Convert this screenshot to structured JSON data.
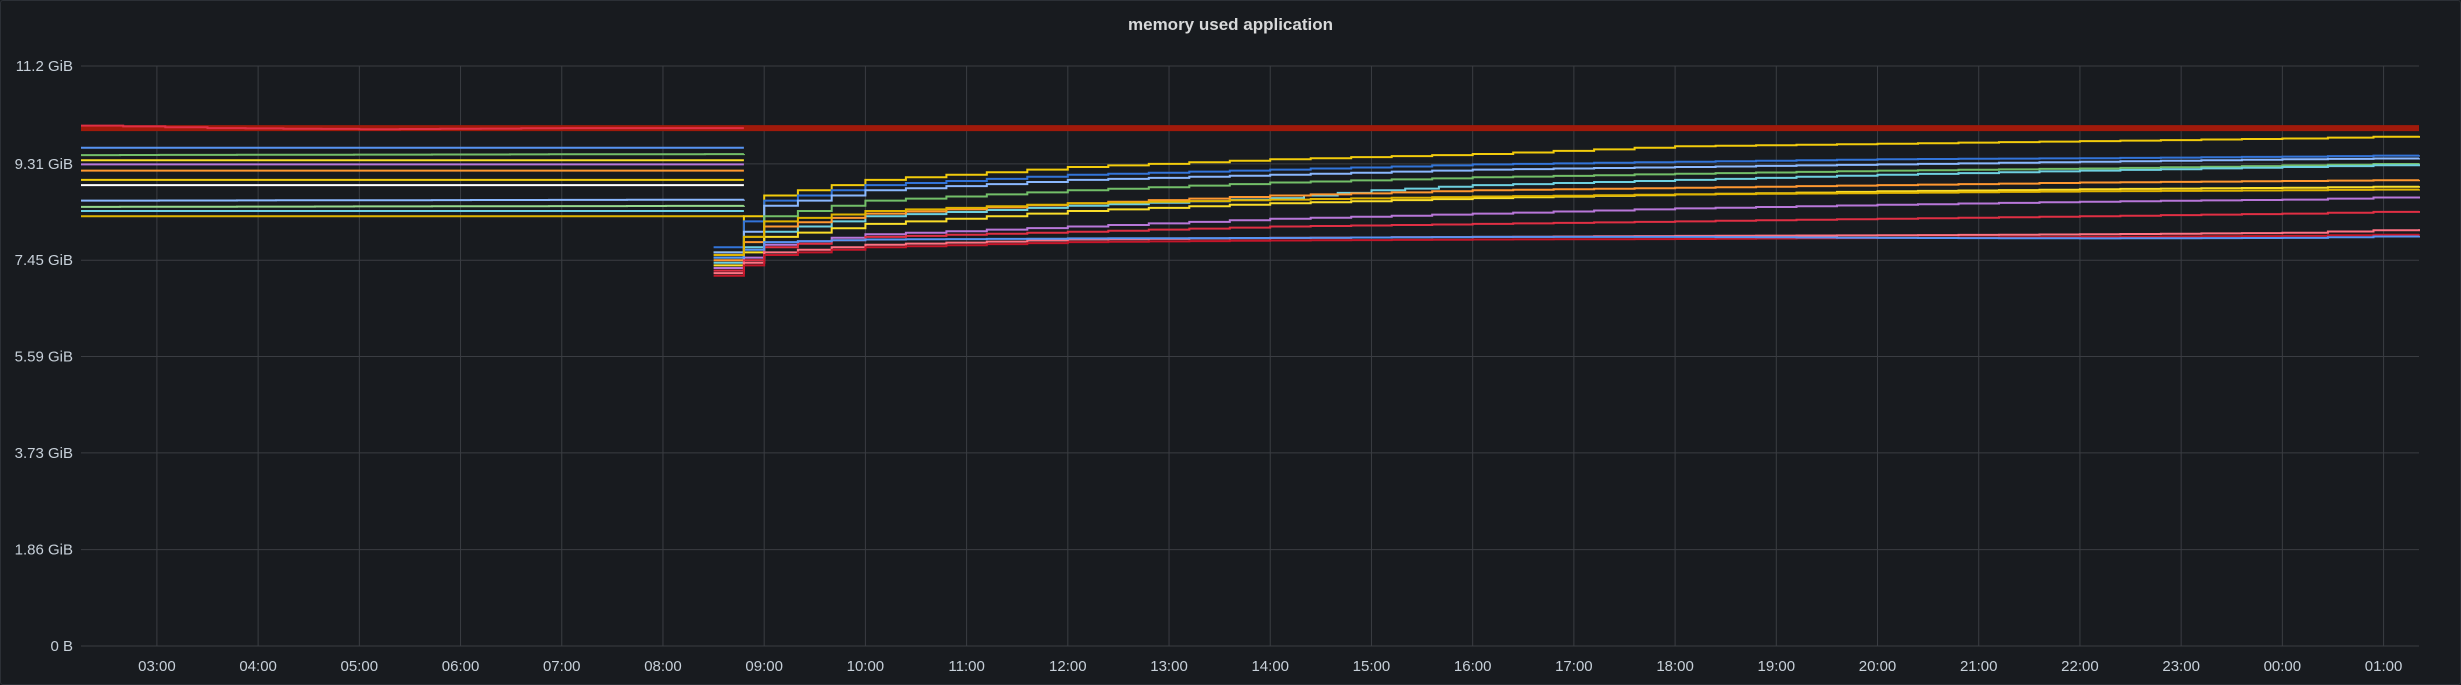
{
  "panel": {
    "title": "memory used application"
  },
  "colors": {
    "background": "#181b1f",
    "grid": "#3a3d42",
    "text": "#c7d0d9",
    "highlight_series": "#a01a0b"
  },
  "chart_data": {
    "type": "line",
    "title": "memory used application",
    "xlabel": "",
    "ylabel": "",
    "x_ticks": [
      "03:00",
      "04:00",
      "05:00",
      "06:00",
      "07:00",
      "08:00",
      "09:00",
      "10:00",
      "11:00",
      "12:00",
      "13:00",
      "14:00",
      "15:00",
      "16:00",
      "17:00",
      "18:00",
      "19:00",
      "20:00",
      "21:00",
      "22:00",
      "23:00",
      "00:00",
      "01:00"
    ],
    "x_range_hours": [
      2.25,
      25.35
    ],
    "y_ticks": [
      {
        "value": 0,
        "label": "0 B"
      },
      {
        "value": 1.86,
        "label": "1.86 GiB"
      },
      {
        "value": 3.73,
        "label": "3.73 GiB"
      },
      {
        "value": 5.59,
        "label": "5.59 GiB"
      },
      {
        "value": 7.45,
        "label": "7.45 GiB"
      },
      {
        "value": 9.31,
        "label": "9.31 GiB"
      },
      {
        "value": 11.2,
        "label": "11.2 GiB"
      }
    ],
    "y_unit": "GiB",
    "ylim": [
      0,
      11.2
    ],
    "grid": true,
    "legend": "none",
    "restart_at_hour": 8.6,
    "series": [
      {
        "color": "#a01a0b",
        "width": 6,
        "points": [
          [
            2.25,
            10.0
          ],
          [
            25.35,
            10.0
          ]
        ]
      },
      {
        "color": "#e02f44",
        "width": 2,
        "points": [
          [
            2.25,
            10.05
          ],
          [
            3.5,
            10.0
          ],
          [
            5.0,
            9.98
          ],
          [
            7.0,
            10.0
          ],
          [
            8.8,
            10.0
          ]
        ]
      },
      {
        "color": "#5794f2",
        "width": 2,
        "points": [
          [
            2.25,
            9.62
          ],
          [
            8.8,
            9.62
          ]
        ]
      },
      {
        "color": "#73bf69",
        "width": 2,
        "points": [
          [
            2.25,
            9.48
          ],
          [
            8.8,
            9.5
          ]
        ]
      },
      {
        "color": "#fade2a",
        "width": 2,
        "points": [
          [
            2.25,
            9.38
          ],
          [
            8.8,
            9.38
          ]
        ]
      },
      {
        "color": "#b877d9",
        "width": 2,
        "points": [
          [
            2.25,
            9.3
          ],
          [
            8.8,
            9.3
          ]
        ]
      },
      {
        "color": "#ff9830",
        "width": 2,
        "points": [
          [
            2.25,
            9.18
          ],
          [
            8.8,
            9.18
          ]
        ]
      },
      {
        "color": "#f2cc0c",
        "width": 2,
        "points": [
          [
            2.25,
            9.0
          ],
          [
            8.8,
            9.0
          ]
        ]
      },
      {
        "color": "#ffffff",
        "width": 2,
        "points": [
          [
            2.25,
            8.9
          ],
          [
            8.8,
            8.9
          ]
        ]
      },
      {
        "color": "#8ab8ff",
        "width": 2,
        "points": [
          [
            2.25,
            8.6
          ],
          [
            8.8,
            8.62
          ]
        ]
      },
      {
        "color": "#96d98d",
        "width": 2,
        "points": [
          [
            2.25,
            8.48
          ],
          [
            8.8,
            8.5
          ]
        ]
      },
      {
        "color": "#6ed0e0",
        "width": 2,
        "points": [
          [
            2.25,
            8.4
          ],
          [
            8.8,
            8.4
          ]
        ]
      },
      {
        "color": "#e0b400",
        "width": 2,
        "points": [
          [
            2.25,
            8.3
          ],
          [
            8.8,
            8.3
          ]
        ]
      },
      {
        "color": "#f2cc0c",
        "width": 2,
        "points": [
          [
            8.5,
            7.6
          ],
          [
            8.7,
            7.6
          ],
          [
            8.8,
            8.3
          ],
          [
            9.0,
            8.7
          ],
          [
            10.0,
            9.0
          ],
          [
            12.0,
            9.25
          ],
          [
            14.0,
            9.4
          ],
          [
            16.0,
            9.5
          ],
          [
            18.0,
            9.65
          ],
          [
            20.0,
            9.7
          ],
          [
            22.0,
            9.75
          ],
          [
            24.0,
            9.8
          ],
          [
            25.35,
            9.85
          ]
        ]
      },
      {
        "color": "#3274d9",
        "width": 2,
        "points": [
          [
            8.5,
            7.7
          ],
          [
            8.7,
            7.7
          ],
          [
            8.8,
            8.2
          ],
          [
            9.0,
            8.6
          ],
          [
            10.0,
            8.9
          ],
          [
            12.0,
            9.1
          ],
          [
            14.0,
            9.2
          ],
          [
            16.0,
            9.3
          ],
          [
            18.0,
            9.35
          ],
          [
            20.0,
            9.4
          ],
          [
            22.0,
            9.42
          ],
          [
            24.0,
            9.45
          ],
          [
            25.35,
            9.48
          ]
        ]
      },
      {
        "color": "#8ab8ff",
        "width": 2,
        "points": [
          [
            8.5,
            7.6
          ],
          [
            8.7,
            7.6
          ],
          [
            8.8,
            8.0
          ],
          [
            9.0,
            8.5
          ],
          [
            10.0,
            8.8
          ],
          [
            12.0,
            9.0
          ],
          [
            14.0,
            9.1
          ],
          [
            16.0,
            9.2
          ],
          [
            18.0,
            9.25
          ],
          [
            20.0,
            9.3
          ],
          [
            22.0,
            9.35
          ],
          [
            24.0,
            9.4
          ],
          [
            25.35,
            9.42
          ]
        ]
      },
      {
        "color": "#73bf69",
        "width": 2,
        "points": [
          [
            8.5,
            7.5
          ],
          [
            8.7,
            7.5
          ],
          [
            8.8,
            7.9
          ],
          [
            9.0,
            8.3
          ],
          [
            10.0,
            8.6
          ],
          [
            12.0,
            8.8
          ],
          [
            14.0,
            8.95
          ],
          [
            16.0,
            9.05
          ],
          [
            18.0,
            9.12
          ],
          [
            20.0,
            9.18
          ],
          [
            22.0,
            9.22
          ],
          [
            24.0,
            9.28
          ],
          [
            25.35,
            9.32
          ]
        ]
      },
      {
        "color": "#6ed0e0",
        "width": 2,
        "points": [
          [
            8.5,
            7.4
          ],
          [
            8.7,
            7.4
          ],
          [
            8.8,
            7.7
          ],
          [
            9.0,
            8.0
          ],
          [
            10.0,
            8.3
          ],
          [
            12.0,
            8.5
          ],
          [
            14.0,
            8.65
          ],
          [
            15.0,
            8.8
          ],
          [
            16.0,
            8.9
          ],
          [
            18.0,
            9.0
          ],
          [
            20.0,
            9.1
          ],
          [
            22.0,
            9.18
          ],
          [
            24.0,
            9.25
          ],
          [
            25.35,
            9.3
          ]
        ]
      },
      {
        "color": "#ff9830",
        "width": 2,
        "points": [
          [
            8.5,
            7.45
          ],
          [
            8.7,
            7.45
          ],
          [
            8.8,
            7.8
          ],
          [
            9.0,
            8.1
          ],
          [
            10.0,
            8.35
          ],
          [
            12.0,
            8.55
          ],
          [
            14.0,
            8.7
          ],
          [
            16.0,
            8.8
          ],
          [
            18.0,
            8.85
          ],
          [
            20.0,
            8.9
          ],
          [
            22.0,
            8.95
          ],
          [
            24.0,
            8.98
          ],
          [
            25.35,
            9.0
          ]
        ]
      },
      {
        "color": "#fade2a",
        "width": 2,
        "points": [
          [
            8.5,
            7.35
          ],
          [
            8.7,
            7.35
          ],
          [
            8.8,
            7.6
          ],
          [
            9.0,
            7.9
          ],
          [
            10.0,
            8.15
          ],
          [
            12.0,
            8.4
          ],
          [
            14.0,
            8.55
          ],
          [
            16.0,
            8.65
          ],
          [
            18.0,
            8.72
          ],
          [
            20.0,
            8.78
          ],
          [
            22.0,
            8.82
          ],
          [
            24.0,
            8.85
          ],
          [
            25.35,
            8.88
          ]
        ]
      },
      {
        "color": "#b877d9",
        "width": 2,
        "points": [
          [
            8.5,
            7.3
          ],
          [
            8.7,
            7.3
          ],
          [
            8.8,
            7.5
          ],
          [
            9.0,
            7.75
          ],
          [
            10.0,
            7.95
          ],
          [
            12.0,
            8.1
          ],
          [
            14.0,
            8.25
          ],
          [
            16.0,
            8.35
          ],
          [
            18.0,
            8.45
          ],
          [
            20.0,
            8.52
          ],
          [
            22.0,
            8.58
          ],
          [
            24.0,
            8.62
          ],
          [
            25.35,
            8.68
          ]
        ]
      },
      {
        "color": "#e02f44",
        "width": 2,
        "points": [
          [
            8.5,
            7.25
          ],
          [
            8.7,
            7.25
          ],
          [
            8.8,
            7.45
          ],
          [
            9.0,
            7.7
          ],
          [
            10.0,
            7.9
          ],
          [
            12.0,
            8.0
          ],
          [
            14.0,
            8.1
          ],
          [
            16.0,
            8.15
          ],
          [
            18.0,
            8.2
          ],
          [
            20.0,
            8.25
          ],
          [
            22.0,
            8.3
          ],
          [
            24.0,
            8.35
          ],
          [
            25.35,
            8.4
          ]
        ]
      },
      {
        "color": "#ff7383",
        "width": 2,
        "points": [
          [
            8.5,
            7.2
          ],
          [
            8.7,
            7.2
          ],
          [
            8.8,
            7.4
          ],
          [
            9.0,
            7.6
          ],
          [
            10.0,
            7.75
          ],
          [
            12.0,
            7.85
          ],
          [
            14.0,
            7.88
          ],
          [
            16.0,
            7.9
          ],
          [
            18.0,
            7.92
          ],
          [
            20.0,
            7.93
          ],
          [
            22.0,
            7.95
          ],
          [
            24.0,
            7.98
          ],
          [
            25.35,
            8.05
          ]
        ]
      },
      {
        "color": "#c4162a",
        "width": 2,
        "points": [
          [
            8.5,
            7.15
          ],
          [
            8.7,
            7.15
          ],
          [
            8.8,
            7.35
          ],
          [
            9.0,
            7.55
          ],
          [
            10.0,
            7.7
          ],
          [
            12.0,
            7.8
          ],
          [
            14.0,
            7.83
          ],
          [
            16.0,
            7.85
          ],
          [
            18.0,
            7.86
          ],
          [
            20.0,
            7.88
          ],
          [
            22.0,
            7.9
          ],
          [
            24.0,
            7.92
          ],
          [
            25.35,
            7.95
          ]
        ]
      },
      {
        "color": "#5794f2",
        "width": 2,
        "points": [
          [
            8.5,
            7.5
          ],
          [
            8.7,
            7.5
          ],
          [
            8.8,
            7.65
          ],
          [
            9.0,
            7.8
          ],
          [
            10.0,
            7.85
          ],
          [
            12.0,
            7.87
          ],
          [
            14.0,
            7.88
          ],
          [
            16.0,
            7.9
          ],
          [
            18.0,
            7.9
          ],
          [
            20.0,
            7.88
          ],
          [
            22.0,
            7.87
          ],
          [
            24.0,
            7.88
          ],
          [
            25.35,
            7.92
          ]
        ]
      },
      {
        "color": "#e0b400",
        "width": 2,
        "points": [
          [
            8.5,
            7.55
          ],
          [
            8.7,
            7.55
          ],
          [
            8.8,
            7.9
          ],
          [
            9.0,
            8.2
          ],
          [
            10.0,
            8.4
          ],
          [
            12.0,
            8.55
          ],
          [
            14.0,
            8.62
          ],
          [
            16.0,
            8.68
          ],
          [
            18.0,
            8.72
          ],
          [
            20.0,
            8.75
          ],
          [
            22.0,
            8.78
          ],
          [
            24.0,
            8.8
          ],
          [
            25.35,
            8.82
          ]
        ]
      }
    ]
  }
}
